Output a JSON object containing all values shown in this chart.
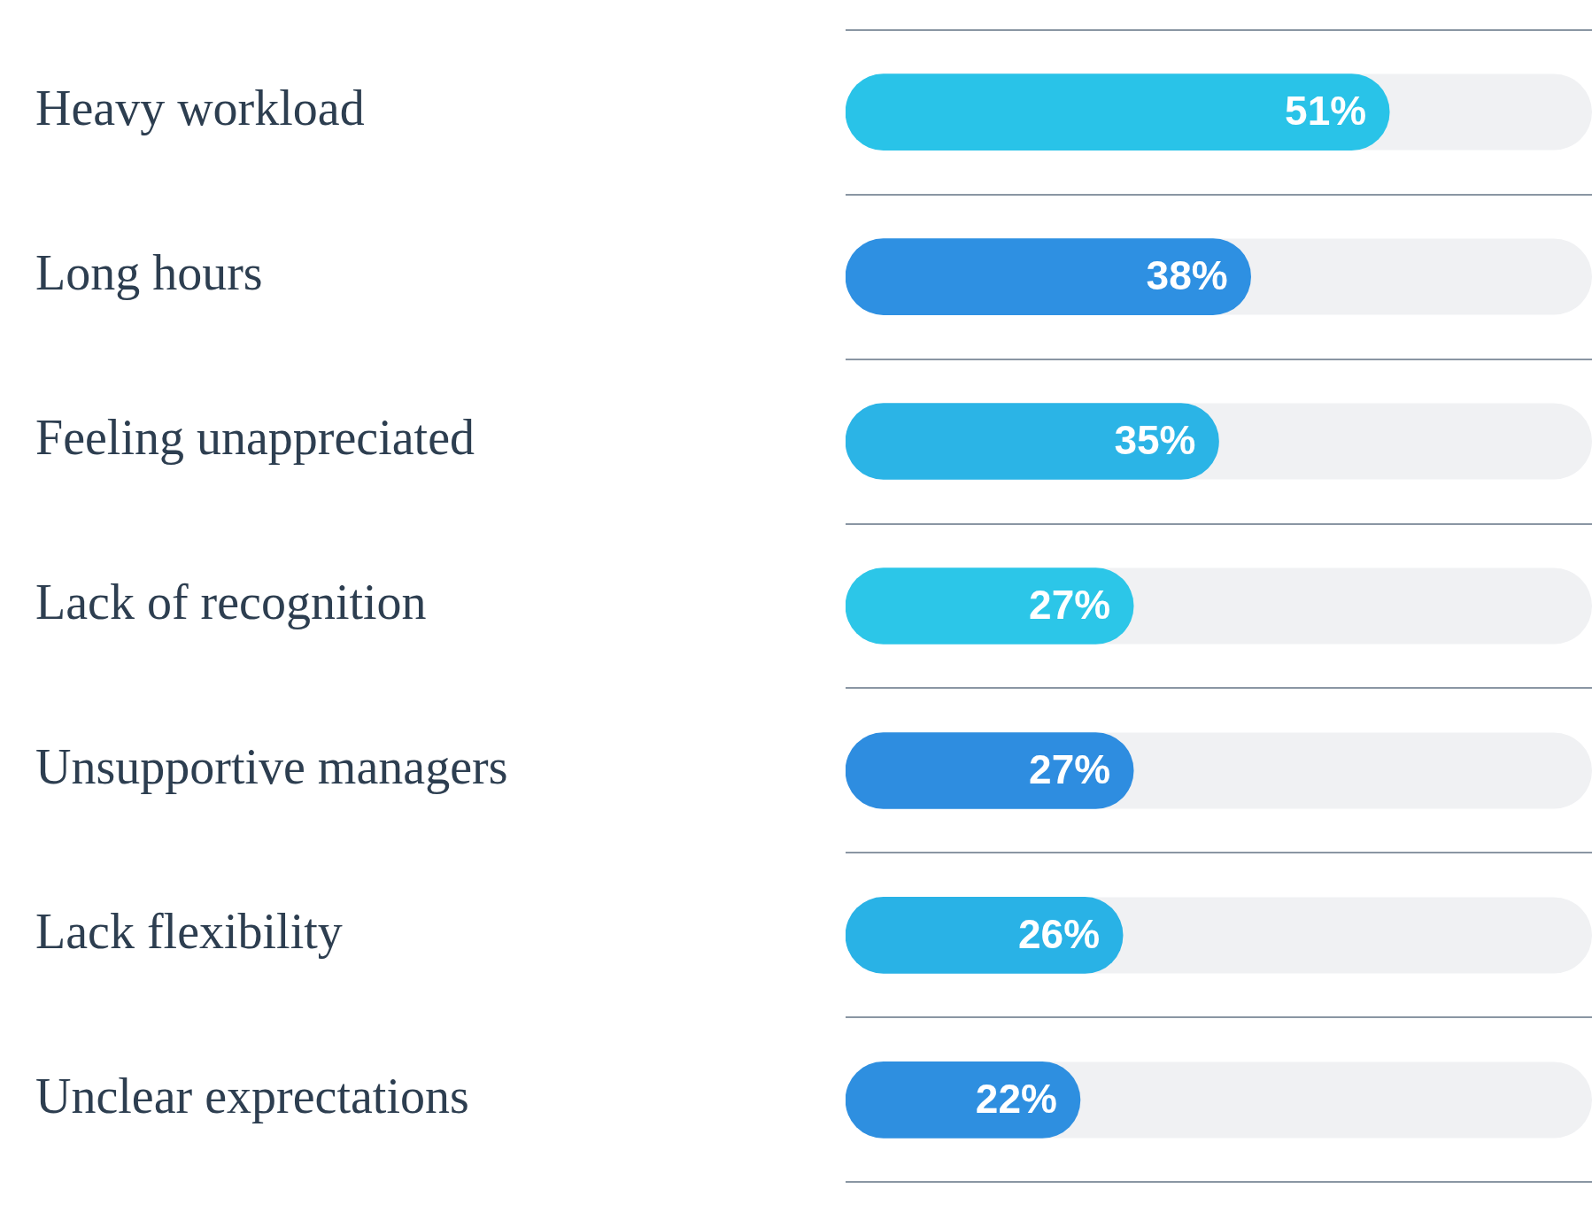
{
  "chart_data": {
    "type": "bar",
    "orientation": "horizontal",
    "categories": [
      "Heavy workload",
      "Long hours",
      "Feeling unappreciated",
      "Lack of recognition",
      "Unsupportive managers",
      "Lack flexibility",
      "Unclear exprectations"
    ],
    "values": [
      51,
      38,
      35,
      27,
      27,
      26,
      22
    ],
    "colors": [
      "#29c3e8",
      "#2e90e2",
      "#2bb4e6",
      "#2cc6e8",
      "#2e8de0",
      "#29b2e6",
      "#2e8fe0"
    ],
    "value_labels": [
      "51%",
      "38%",
      "35%",
      "27%",
      "27%",
      "26%",
      "22%"
    ],
    "grid": "y",
    "tick_labels": "y"
  }
}
